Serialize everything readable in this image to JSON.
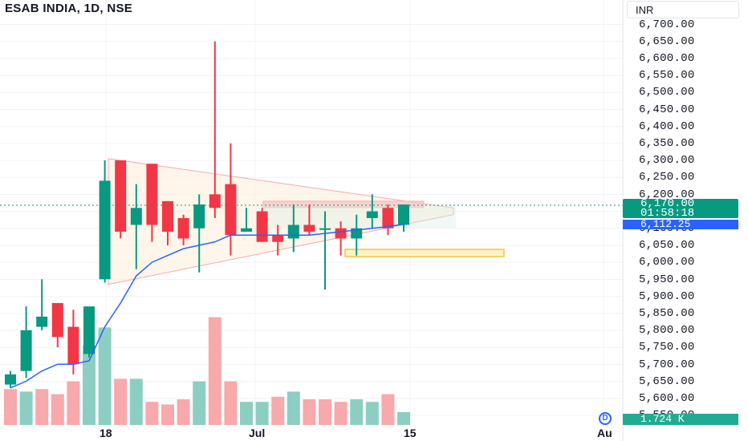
{
  "symbol_title": "ESAB INDIA, 1D, NSE",
  "currency": "INR",
  "last_price": "6,170.00",
  "countdown": "01:58:18",
  "ma_value": "6,112.25",
  "volume_value": "1.724 K",
  "dividend_marker": "D",
  "colors": {
    "up": "#089981",
    "down": "#f23645",
    "ma": "#2962ff",
    "vol_up": "#8dcec3",
    "vol_down": "#f7a9ab"
  },
  "y_axis": [
    "6,700.00",
    "6,650.00",
    "6,600.00",
    "6,550.00",
    "6,500.00",
    "6,450.00",
    "6,400.00",
    "6,350.00",
    "6,300.00",
    "6,250.00",
    "6,200.00",
    "6,150.00",
    "6,100.00",
    "6,050.00",
    "6,000.00",
    "5,950.00",
    "5,900.00",
    "5,850.00",
    "5,800.00",
    "5,750.00",
    "5,700.00",
    "5,650.00",
    "5,600.00",
    "5,550.00"
  ],
  "x_axis": [
    "18",
    "Jul",
    "15",
    "Au"
  ],
  "chart_data": {
    "type": "candlestick",
    "ylim": [
      5530,
      6720
    ],
    "candles": [
      {
        "o": 5640,
        "h": 5680,
        "l": 5630,
        "c": 5670
      },
      {
        "o": 5680,
        "h": 5870,
        "l": 5660,
        "c": 5800
      },
      {
        "o": 5810,
        "h": 5950,
        "l": 5800,
        "c": 5840
      },
      {
        "o": 5880,
        "h": 5880,
        "l": 5750,
        "c": 5780
      },
      {
        "o": 5810,
        "h": 5860,
        "l": 5670,
        "c": 5700
      },
      {
        "o": 5730,
        "h": 5860,
        "l": 5720,
        "c": 5870
      },
      {
        "o": 5950,
        "h": 6300,
        "l": 5940,
        "c": 6240
      },
      {
        "o": 6300,
        "h": 6300,
        "l": 6070,
        "c": 6090
      },
      {
        "o": 6110,
        "h": 6230,
        "l": 5980,
        "c": 6160
      },
      {
        "o": 6290,
        "h": 6290,
        "l": 6060,
        "c": 6110
      },
      {
        "o": 6180,
        "h": 6180,
        "l": 6050,
        "c": 6090
      },
      {
        "o": 6130,
        "h": 6140,
        "l": 6050,
        "c": 6070
      },
      {
        "o": 6100,
        "h": 6200,
        "l": 5970,
        "c": 6170
      },
      {
        "o": 6200,
        "h": 6650,
        "l": 6130,
        "c": 6160
      },
      {
        "o": 6230,
        "h": 6350,
        "l": 6020,
        "c": 6080
      },
      {
        "o": 6090,
        "h": 6160,
        "l": 6090,
        "c": 6100
      },
      {
        "o": 6150,
        "h": 6160,
        "l": 6060,
        "c": 6060
      },
      {
        "o": 6080,
        "h": 6110,
        "l": 6020,
        "c": 6060
      },
      {
        "o": 6070,
        "h": 6170,
        "l": 6030,
        "c": 6110
      },
      {
        "o": 6110,
        "h": 6170,
        "l": 6080,
        "c": 6090
      },
      {
        "o": 6100,
        "h": 6150,
        "l": 5920,
        "c": 6100
      },
      {
        "o": 6100,
        "h": 6120,
        "l": 6020,
        "c": 6070
      },
      {
        "o": 6070,
        "h": 6140,
        "l": 6020,
        "c": 6100
      },
      {
        "o": 6130,
        "h": 6200,
        "l": 6100,
        "c": 6150
      },
      {
        "o": 6160,
        "h": 6170,
        "l": 6080,
        "c": 6100
      },
      {
        "o": 6110,
        "h": 6170,
        "l": 6090,
        "c": 6170
      }
    ],
    "ma": [
      5630,
      5650,
      5680,
      5700,
      5700,
      5710,
      5810,
      5880,
      5960,
      6000,
      6020,
      6040,
      6050,
      6060,
      6080,
      6080,
      6080,
      6080,
      6080,
      6080,
      6085,
      6090,
      6095,
      6100,
      6105,
      6112
    ],
    "volume": [
      14,
      13,
      14,
      12,
      17,
      31,
      38,
      18,
      18,
      9,
      8,
      10,
      17,
      42,
      17,
      9,
      9,
      11,
      13,
      10,
      10,
      9,
      10,
      9,
      12,
      5
    ],
    "volume_up": [
      false,
      true,
      false,
      false,
      false,
      true,
      true,
      false,
      true,
      false,
      false,
      false,
      true,
      false,
      false,
      true,
      true,
      false,
      true,
      false,
      false,
      false,
      true,
      true,
      false,
      true
    ]
  }
}
